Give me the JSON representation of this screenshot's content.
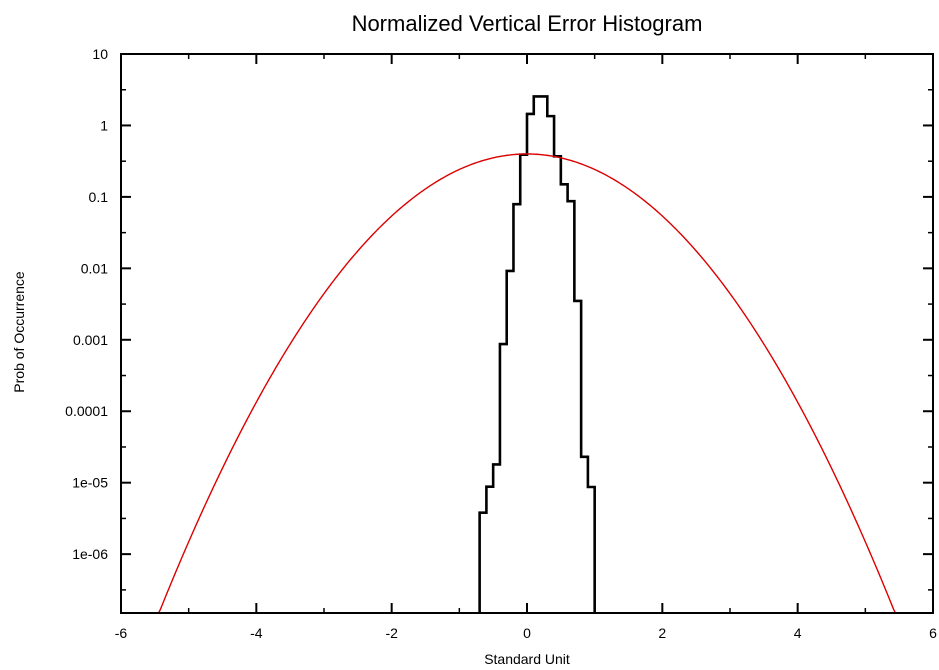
{
  "chart_data": {
    "type": "line",
    "title": "Normalized Vertical Error Histogram",
    "xlabel": "Standard Unit",
    "ylabel": "Prob of Occurrence",
    "xlim": [
      -6,
      6
    ],
    "ylim": [
      1.5e-07,
      10
    ],
    "yscale": "log",
    "grid": false,
    "legend": "none",
    "x_ticks": [
      -6,
      -4,
      -2,
      0,
      2,
      4,
      6
    ],
    "x_tick_labels": [
      "-6",
      "-4",
      "-2",
      "0",
      "2",
      "4",
      "6"
    ],
    "y_ticks": [
      10,
      1,
      0.1,
      0.01,
      0.001,
      0.0001,
      1e-05,
      1e-06
    ],
    "y_tick_labels": [
      "10",
      "1",
      "0.1",
      "0.01",
      "0.001",
      "0.0001",
      "1e-05",
      "1e-06"
    ],
    "x_minor_ticks": [
      -5,
      -3,
      -1,
      1,
      3,
      5
    ],
    "y_minor_ticks": [
      3.16,
      0.316,
      0.0316,
      0.00316,
      0.000316,
      3.16e-05,
      3.16e-06,
      3.16e-07
    ],
    "series": [
      {
        "kind": "step-histogram",
        "color": "#000000",
        "bins": [
          {
            "x0": -0.7,
            "x1": -0.6,
            "y": 3.8e-06
          },
          {
            "x0": -0.6,
            "x1": -0.5,
            "y": 8.8e-06
          },
          {
            "x0": -0.5,
            "x1": -0.4,
            "y": 1.8e-05
          },
          {
            "x0": -0.4,
            "x1": -0.3,
            "y": 0.00087
          },
          {
            "x0": -0.3,
            "x1": -0.2,
            "y": 0.0092
          },
          {
            "x0": -0.2,
            "x1": -0.1,
            "y": 0.079
          },
          {
            "x0": -0.1,
            "x1": 0.0,
            "y": 0.39
          },
          {
            "x0": 0.0,
            "x1": 0.1,
            "y": 1.45
          },
          {
            "x0": 0.1,
            "x1": 0.3,
            "y": 2.55
          },
          {
            "x0": 0.3,
            "x1": 0.4,
            "y": 1.35
          },
          {
            "x0": 0.4,
            "x1": 0.5,
            "y": 0.37
          },
          {
            "x0": 0.5,
            "x1": 0.6,
            "y": 0.15
          },
          {
            "x0": 0.6,
            "x1": 0.7,
            "y": 0.087
          },
          {
            "x0": 0.7,
            "x1": 0.8,
            "y": 0.0035
          },
          {
            "x0": 0.8,
            "x1": 0.9,
            "y": 2.3e-05
          },
          {
            "x0": 0.9,
            "x1": 1.0,
            "y": 8.7e-06
          }
        ]
      },
      {
        "kind": "curve",
        "color": "#dd0000",
        "function": "standard_normal_pdf",
        "x_range": [
          -5.5,
          5.5
        ]
      }
    ]
  }
}
